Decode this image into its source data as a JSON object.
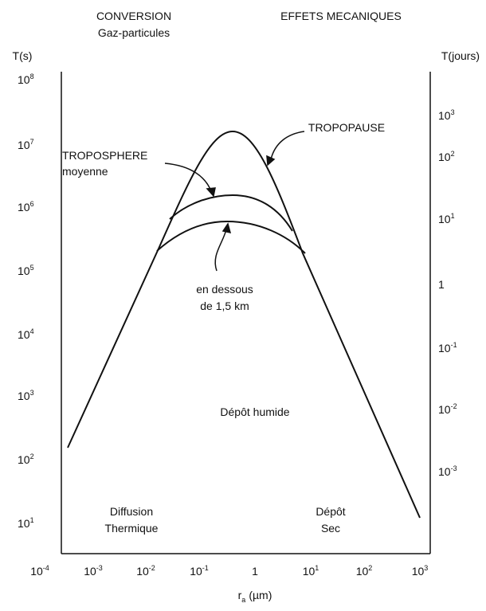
{
  "header": {
    "left": [
      "CONVERSION",
      "Gaz-particules"
    ],
    "right": [
      "EFFETS MECANIQUES"
    ]
  },
  "axes": {
    "left": {
      "title": "T(s)",
      "ticks": [
        {
          "base": "10",
          "exp": "8"
        },
        {
          "base": "10",
          "exp": "7"
        },
        {
          "base": "10",
          "exp": "6"
        },
        {
          "base": "10",
          "exp": "5"
        },
        {
          "base": "10",
          "exp": "4"
        },
        {
          "base": "10",
          "exp": "3"
        },
        {
          "base": "10",
          "exp": "2"
        },
        {
          "base": "10",
          "exp": "1"
        }
      ]
    },
    "right": {
      "title": "T(jours)",
      "ticks": [
        {
          "base": "10",
          "exp": "3"
        },
        {
          "base": "10",
          "exp": "2"
        },
        {
          "base": "10",
          "exp": "1"
        },
        {
          "base": "1"
        },
        {
          "base": "10",
          "exp": "-1"
        },
        {
          "base": "10",
          "exp": "-2"
        },
        {
          "base": "10",
          "exp": "-3"
        }
      ]
    },
    "bottom": {
      "title": {
        "symbol": "r",
        "subscript": "a",
        "unit": "(µm)"
      },
      "ticks": [
        {
          "base": "10",
          "exp": "-4"
        },
        {
          "base": "10",
          "exp": "-3"
        },
        {
          "base": "10",
          "exp": "-2"
        },
        {
          "base": "10",
          "exp": "-1"
        },
        {
          "base": "1"
        },
        {
          "base": "10",
          "exp": "1"
        },
        {
          "base": "10",
          "exp": "2"
        },
        {
          "base": "10",
          "exp": "3"
        }
      ]
    }
  },
  "labels": {
    "tropopause": [
      "TROPOPAUSE"
    ],
    "troposphere": [
      "TROPOSPHERE",
      "moyenne"
    ],
    "below": [
      "en dessous",
      "de 1,5 km"
    ],
    "wet": [
      "Dépôt humide"
    ],
    "diffusion": [
      "Diffusion",
      "Thermique"
    ],
    "dry": [
      "Dépôt",
      "Sec"
    ]
  }
}
